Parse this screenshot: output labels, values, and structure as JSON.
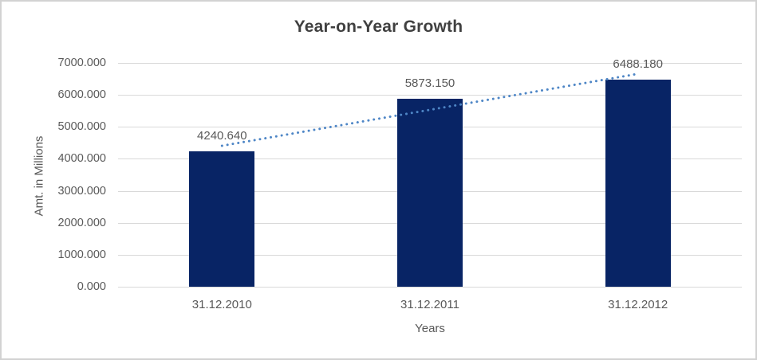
{
  "chart_data": {
    "type": "bar",
    "title": "Year-on-Year Growth",
    "categories": [
      "31.12.2010",
      "31.12.2011",
      "31.12.2012"
    ],
    "values": [
      4240.64,
      5873.15,
      6488.18
    ],
    "data_labels": [
      "4240.640",
      "5873.150",
      "6488.180"
    ],
    "xlabel": "Years",
    "ylabel": "Amt. in Millions",
    "ylim": [
      0,
      7000
    ],
    "ytick_labels": [
      "0.000",
      "1000.000",
      "2000.000",
      "3000.000",
      "4000.000",
      "5000.000",
      "6000.000",
      "7000.000"
    ],
    "grid": "horizontal",
    "legend": "none",
    "trendline": {
      "type": "linear",
      "line_style": "dotted",
      "series": "values"
    }
  },
  "colors": {
    "bar": "#082465",
    "trendline": "#4e86c6",
    "gridline": "#d9d9d9",
    "axis_text": "#595959",
    "title_text": "#404040",
    "border": "#d2d2d2",
    "background": "#ffffff"
  }
}
